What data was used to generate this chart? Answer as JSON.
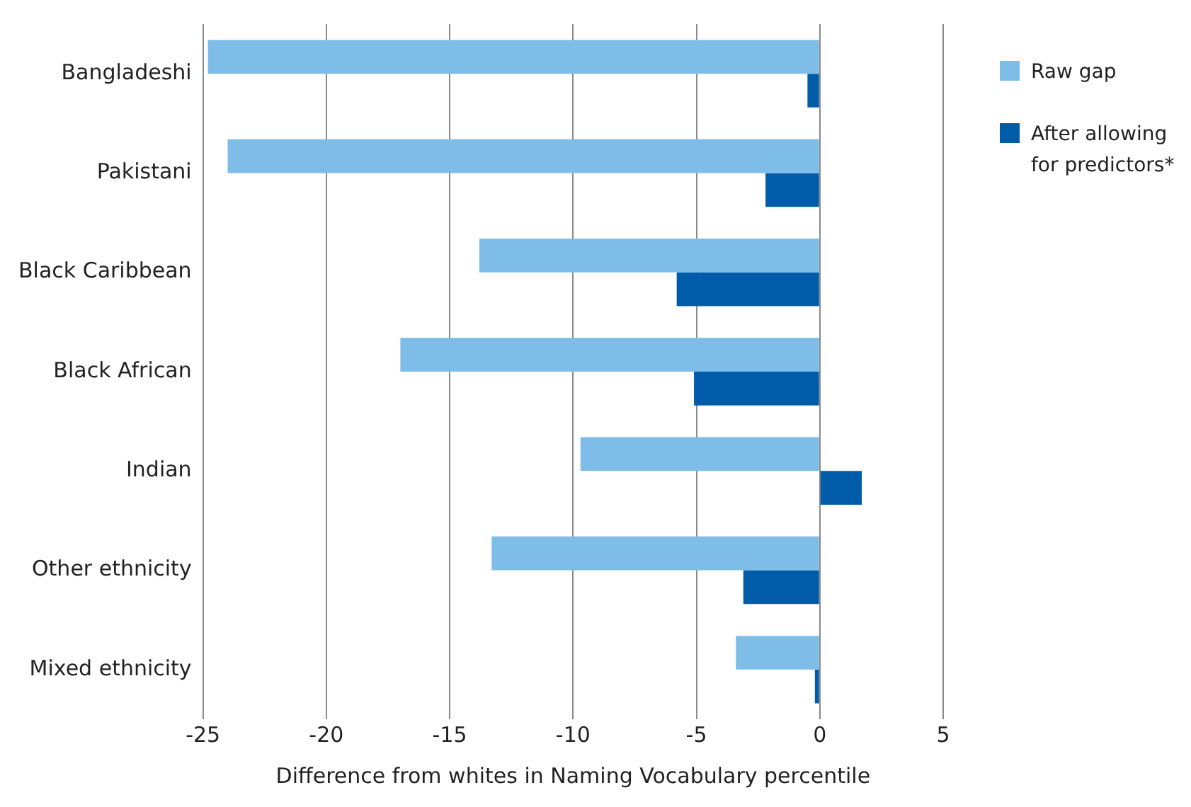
{
  "chart_data": {
    "type": "bar",
    "orientation": "horizontal",
    "xlabel": "Difference from whites in Naming Vocabulary percentile",
    "categories": [
      "Bangladeshi",
      "Pakistani",
      "Black Caribbean",
      "Black African",
      "Indian",
      "Other ethnicity",
      "Mixed ethnicity"
    ],
    "series": [
      {
        "name": "Raw gap",
        "color": "#7dbde8",
        "values": [
          -24.8,
          -24.0,
          -13.8,
          -17.0,
          -9.7,
          -13.3,
          -3.4
        ]
      },
      {
        "name": "After allowing for predictors*",
        "color": "#005ca9",
        "values": [
          -0.5,
          -2.2,
          -5.8,
          -5.1,
          1.7,
          -3.1,
          -0.2
        ]
      }
    ],
    "xlim": [
      -25,
      5
    ],
    "xticks": [
      -25,
      -20,
      -15,
      -10,
      -5,
      0,
      5
    ],
    "grid": "x",
    "legend": "top right"
  }
}
